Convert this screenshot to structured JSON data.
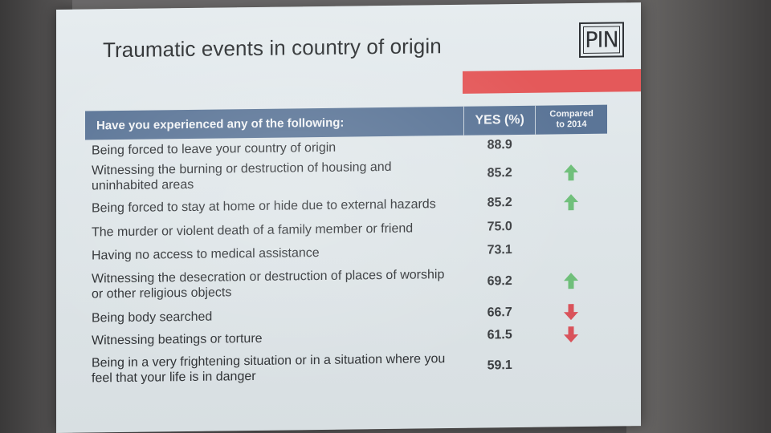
{
  "slide": {
    "title": "Traumatic events in country of origin",
    "logo_text": "PIN",
    "accent_color": "#e4595a",
    "header_color": "#5b7597"
  },
  "table": {
    "headers": {
      "question": "Have you experienced any of the following:",
      "yes": "YES (%)",
      "compared_line1": "Compared",
      "compared_line2": "to 2014"
    },
    "rows": [
      {
        "label": "Being forced to leave your country of origin",
        "value": "88.9",
        "trend": "none"
      },
      {
        "label": "Witnessing the burning or destruction of housing and uninhabited areas",
        "value": "85.2",
        "trend": "up"
      },
      {
        "label": "Being forced to stay at home or hide due to external hazards",
        "value": "85.2",
        "trend": "up"
      },
      {
        "label": "The murder or violent death of a family member or friend",
        "value": "75.0",
        "trend": "none"
      },
      {
        "label": "Having no access to medical assistance",
        "value": "73.1",
        "trend": "none"
      },
      {
        "label": "Witnessing the desecration or destruction of places of worship or other religious objects",
        "value": "69.2",
        "trend": "up"
      },
      {
        "label": "Being body searched",
        "value": "66.7",
        "trend": "down"
      },
      {
        "label": "Witnessing beatings or torture",
        "value": "61.5",
        "trend": "down"
      },
      {
        "label": "Being in a very frightening situation or in a situation where you feel that your life is in danger",
        "value": "59.1",
        "trend": "none"
      }
    ],
    "trend_colors": {
      "up": "#6fbf7a",
      "down": "#d9535b"
    }
  }
}
